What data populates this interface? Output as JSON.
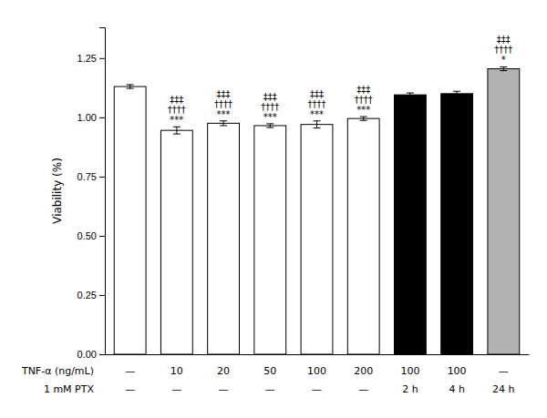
{
  "chart_data": {
    "type": "bar",
    "ylabel": "Viability (%)",
    "xlabel": [
      "TNF-α (ng/mL)",
      "1 mM PTX"
    ],
    "categories": [
      [
        "—",
        "—"
      ],
      [
        "10",
        "—"
      ],
      [
        "20",
        "—"
      ],
      [
        "50",
        "—"
      ],
      [
        "100",
        "—"
      ],
      [
        "200",
        "—"
      ],
      [
        "100",
        "2 h"
      ],
      [
        "100",
        "4 h"
      ],
      [
        "—",
        "24 h"
      ]
    ],
    "values": [
      1.13,
      0.945,
      0.975,
      0.965,
      0.97,
      0.995,
      1.095,
      1.1,
      1.205
    ],
    "errors": [
      0.008,
      0.015,
      0.01,
      0.008,
      0.015,
      0.008,
      0.008,
      0.01,
      0.008
    ],
    "colors": [
      "white",
      "white",
      "white",
      "white",
      "white",
      "white",
      "black",
      "black",
      "#b2b2b2"
    ],
    "annotations": [
      null,
      [
        "‡‡‡",
        "††††",
        "***"
      ],
      [
        "‡‡‡",
        "††††",
        "***"
      ],
      [
        "‡‡‡",
        "††††",
        "***"
      ],
      [
        "‡‡‡",
        "††††",
        "***"
      ],
      [
        "‡‡‡",
        "††††",
        "***"
      ],
      null,
      null,
      [
        "‡‡‡",
        "††††",
        "*"
      ]
    ],
    "ylim": [
      0,
      1.38
    ],
    "yticks": [
      {
        "value": 0,
        "label": "0.00"
      },
      0.25,
      {
        "value": 0.5,
        "label": "0.50"
      },
      0.75,
      {
        "value": 1.0,
        "label": "1.00"
      },
      1.25
    ],
    "grid": false
  }
}
